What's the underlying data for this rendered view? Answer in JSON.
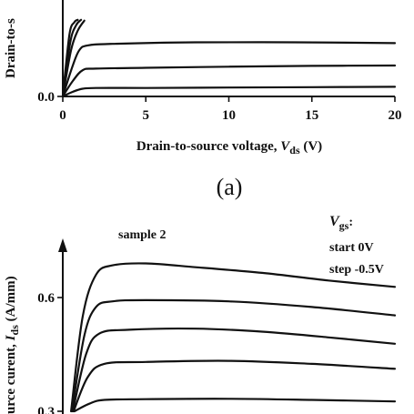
{
  "chart_data": [
    {
      "panel": "(a)",
      "type": "line",
      "xlabel_main": "Drain-to-source voltage, ",
      "xlabel_var": "V",
      "xlabel_sub": "ds",
      "xlabel_unit": " (V)",
      "ylabel_fragment": "Drain-to-s",
      "xlim": [
        0,
        20
      ],
      "xticks": [
        "0",
        "5",
        "10",
        "15",
        "20"
      ],
      "ytick_label": "0.0",
      "series": [
        {
          "values": [
            [
              0,
              0
            ],
            [
              0.6,
              0.06
            ],
            [
              1.2,
              0.1
            ],
            [
              2,
              0.11
            ],
            [
              5,
              0.11
            ],
            [
              10,
              0.115
            ],
            [
              15,
              0.12
            ],
            [
              20,
              0.125
            ]
          ]
        },
        {
          "values": [
            [
              0,
              0
            ],
            [
              0.6,
              0.2
            ],
            [
              1.2,
              0.34
            ],
            [
              2,
              0.36
            ],
            [
              5,
              0.37
            ],
            [
              10,
              0.385
            ],
            [
              15,
              0.395
            ],
            [
              20,
              0.4
            ]
          ]
        },
        {
          "values": [
            [
              0,
              0
            ],
            [
              0.6,
              0.4
            ],
            [
              1.0,
              0.6
            ],
            [
              1.5,
              0.66
            ],
            [
              3,
              0.68
            ],
            [
              8,
              0.7
            ],
            [
              14,
              0.7
            ],
            [
              20,
              0.69
            ]
          ]
        },
        {
          "values": [
            [
              0,
              0
            ],
            [
              0.5,
              0.6
            ],
            [
              0.9,
              0.85
            ],
            [
              1.3,
              0.98
            ]
          ]
        },
        {
          "values": [
            [
              0,
              0
            ],
            [
              0.45,
              0.7
            ],
            [
              0.8,
              0.92
            ],
            [
              1.1,
              0.99
            ]
          ]
        },
        {
          "values": [
            [
              0,
              0
            ],
            [
              0.4,
              0.8
            ],
            [
              0.7,
              0.96
            ],
            [
              0.9,
              0.99
            ]
          ]
        }
      ]
    },
    {
      "panel": "(b)",
      "type": "line",
      "sample_label": "sample 2",
      "vgs_var": "V",
      "vgs_sub": "gs",
      "vgs_colon": ":",
      "start_label": "start 0V",
      "step_label": "step  -0.5V",
      "ylabel_fragment_1": "urce curent, ",
      "ylabel_var": "I",
      "ylabel_sub": "ds",
      "ylabel_unit": " (A/mm)",
      "yticks": [
        "0.6",
        "0.3"
      ],
      "xlim": [
        0,
        20
      ],
      "ylim": [
        0.3,
        0.75
      ],
      "series": [
        {
          "values": [
            [
              0.5,
              0.3
            ],
            [
              1.2,
              0.55
            ],
            [
              2,
              0.66
            ],
            [
              3,
              0.685
            ],
            [
              5,
              0.69
            ],
            [
              8,
              0.68
            ],
            [
              12,
              0.665
            ],
            [
              16,
              0.645
            ],
            [
              20,
              0.628
            ]
          ]
        },
        {
          "values": [
            [
              0.55,
              0.3
            ],
            [
              1.3,
              0.5
            ],
            [
              2,
              0.575
            ],
            [
              3,
              0.59
            ],
            [
              5,
              0.593
            ],
            [
              10,
              0.59
            ],
            [
              15,
              0.575
            ],
            [
              20,
              0.553
            ]
          ]
        },
        {
          "values": [
            [
              0.6,
              0.3
            ],
            [
              1.4,
              0.45
            ],
            [
              2.2,
              0.505
            ],
            [
              4,
              0.515
            ],
            [
              8,
              0.518
            ],
            [
              12,
              0.51
            ],
            [
              16,
              0.495
            ],
            [
              20,
              0.478
            ]
          ]
        },
        {
          "values": [
            [
              0.65,
              0.3
            ],
            [
              1.5,
              0.39
            ],
            [
              2.5,
              0.425
            ],
            [
              5,
              0.43
            ],
            [
              10,
              0.433
            ],
            [
              15,
              0.425
            ],
            [
              20,
              0.412
            ]
          ]
        },
        {
          "values": [
            [
              0.7,
              0.3
            ],
            [
              1.6,
              0.32
            ],
            [
              2.5,
              0.33
            ],
            [
              5,
              0.332
            ],
            [
              10,
              0.333
            ],
            [
              15,
              0.33
            ],
            [
              20,
              0.326
            ]
          ]
        }
      ]
    }
  ]
}
